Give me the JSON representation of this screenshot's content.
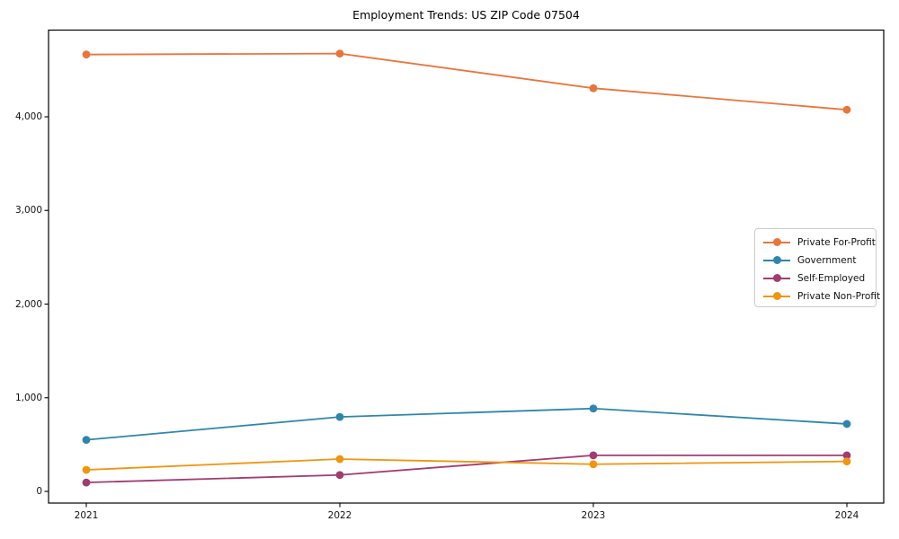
{
  "title": "Employment Trends: US ZIP Code 07504",
  "chart_data": {
    "type": "line",
    "title": "Employment Trends: US ZIP Code 07504",
    "xlabel": "",
    "ylabel": "",
    "categories": [
      "2021",
      "2022",
      "2023",
      "2024"
    ],
    "series": [
      {
        "name": "Private For-Profit",
        "color": "#e8763b",
        "values": [
          4665,
          4675,
          4305,
          4075
        ]
      },
      {
        "name": "Government",
        "color": "#2e86ab",
        "values": [
          550,
          795,
          885,
          720
        ]
      },
      {
        "name": "Self-Employed",
        "color": "#a23b72",
        "values": [
          95,
          175,
          385,
          385
        ]
      },
      {
        "name": "Private Non-Profit",
        "color": "#f0950f",
        "values": [
          230,
          345,
          290,
          320
        ]
      }
    ],
    "yticks": [
      0,
      1000,
      2000,
      3000,
      4000
    ],
    "ytick_labels": [
      "0",
      "1,000",
      "2,000",
      "3,000",
      "4,000"
    ],
    "ylim": [
      -125,
      4925
    ],
    "grid": false,
    "legend_position": "center-right",
    "marker": "circle"
  }
}
